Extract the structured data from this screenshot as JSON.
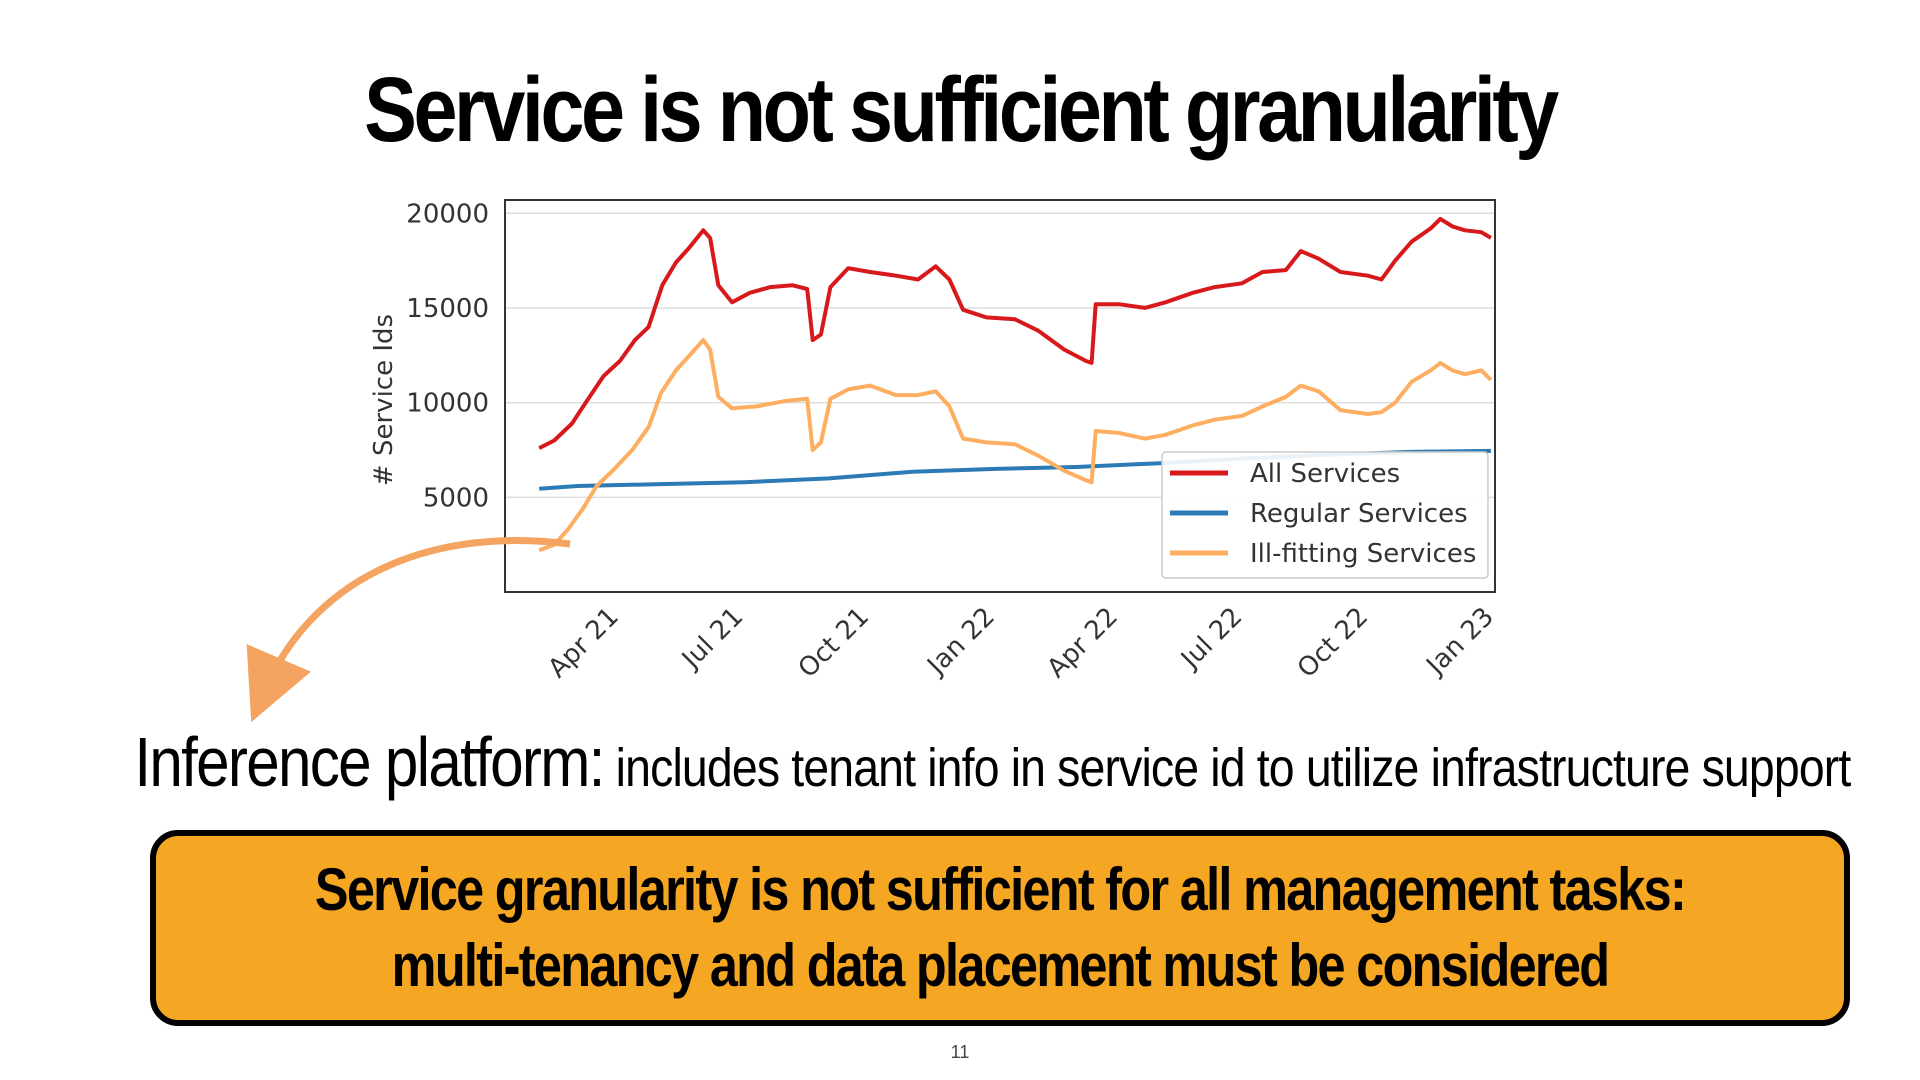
{
  "slide": {
    "title": "Service is not sufficient granularity",
    "subtitle_head": "Inference platform:",
    "subtitle_body": " includes tenant info in service id to utilize infrastructure support",
    "callout": "Service granularity is not sufficient for all management tasks: multi-tenancy and data placement must be considered",
    "page_number": "11"
  },
  "colors": {
    "all_services": "#d7191c",
    "regular_services": "#2c7bb6",
    "ill_fitting_services": "#fdae61",
    "arrow": "#f4a460",
    "callout_fill": "#f5a623"
  },
  "chart_data": {
    "type": "line",
    "title": "",
    "xlabel": "",
    "ylabel": "# Service Ids",
    "x_ticks": [
      "Apr 21",
      "Jul 21",
      "Oct 21",
      "Jan 22",
      "Apr 22",
      "Jul 22",
      "Oct 22",
      "Jan 23"
    ],
    "y_ticks": [
      "5000",
      "10000",
      "15000",
      "20000"
    ],
    "ylim": [
      0,
      20700
    ],
    "xlim": [
      "2021-01-07",
      "2023-01-01"
    ],
    "grid": true,
    "legend_position": "lower-right",
    "series": [
      {
        "name": "All Services",
        "color": "#d7191c",
        "points": [
          [
            "2021-02-01",
            7600
          ],
          [
            "2021-02-12",
            8000
          ],
          [
            "2021-02-25",
            8900
          ],
          [
            "2021-03-08",
            10100
          ],
          [
            "2021-03-20",
            11400
          ],
          [
            "2021-04-01",
            12200
          ],
          [
            "2021-04-12",
            13300
          ],
          [
            "2021-04-22",
            14000
          ],
          [
            "2021-05-02",
            16200
          ],
          [
            "2021-05-12",
            17400
          ],
          [
            "2021-05-22",
            18200
          ],
          [
            "2021-06-01",
            19100
          ],
          [
            "2021-06-06",
            18700
          ],
          [
            "2021-06-12",
            16200
          ],
          [
            "2021-06-22",
            15300
          ],
          [
            "2021-07-05",
            15800
          ],
          [
            "2021-07-20",
            16100
          ],
          [
            "2021-08-05",
            16200
          ],
          [
            "2021-08-16",
            16000
          ],
          [
            "2021-08-20",
            13300
          ],
          [
            "2021-08-26",
            13600
          ],
          [
            "2021-09-02",
            16100
          ],
          [
            "2021-09-15",
            17100
          ],
          [
            "2021-10-01",
            16900
          ],
          [
            "2021-10-20",
            16700
          ],
          [
            "2021-11-05",
            16500
          ],
          [
            "2021-11-18",
            17200
          ],
          [
            "2021-11-28",
            16500
          ],
          [
            "2021-12-08",
            14900
          ],
          [
            "2021-12-25",
            14500
          ],
          [
            "2022-01-15",
            14400
          ],
          [
            "2022-02-01",
            13800
          ],
          [
            "2022-02-20",
            12800
          ],
          [
            "2022-03-08",
            12200
          ],
          [
            "2022-03-12",
            12100
          ],
          [
            "2022-03-15",
            15200
          ],
          [
            "2022-04-01",
            15200
          ],
          [
            "2022-04-20",
            15000
          ],
          [
            "2022-05-05",
            15300
          ],
          [
            "2022-05-25",
            15800
          ],
          [
            "2022-06-10",
            16100
          ],
          [
            "2022-06-30",
            16300
          ],
          [
            "2022-07-15",
            16900
          ],
          [
            "2022-08-01",
            17000
          ],
          [
            "2022-08-12",
            18000
          ],
          [
            "2022-08-25",
            17600
          ],
          [
            "2022-09-10",
            16900
          ],
          [
            "2022-09-30",
            16700
          ],
          [
            "2022-10-10",
            16500
          ],
          [
            "2022-10-20",
            17500
          ],
          [
            "2022-11-01",
            18500
          ],
          [
            "2022-11-15",
            19200
          ],
          [
            "2022-11-22",
            19700
          ],
          [
            "2022-12-01",
            19300
          ],
          [
            "2022-12-10",
            19100
          ],
          [
            "2022-12-22",
            19000
          ],
          [
            "2022-12-29",
            18700
          ]
        ]
      },
      {
        "name": "Regular Services",
        "color": "#2c7bb6",
        "points": [
          [
            "2021-02-01",
            5450
          ],
          [
            "2021-03-01",
            5600
          ],
          [
            "2021-05-01",
            5700
          ],
          [
            "2021-07-01",
            5800
          ],
          [
            "2021-09-01",
            6000
          ],
          [
            "2021-11-01",
            6350
          ],
          [
            "2022-01-01",
            6500
          ],
          [
            "2022-03-01",
            6600
          ],
          [
            "2022-05-01",
            6800
          ],
          [
            "2022-07-01",
            7050
          ],
          [
            "2022-09-01",
            7250
          ],
          [
            "2022-11-01",
            7400
          ],
          [
            "2022-12-29",
            7450
          ]
        ]
      },
      {
        "name": "Ill-fitting Services",
        "color": "#fdae61",
        "points": [
          [
            "2021-02-01",
            2200
          ],
          [
            "2021-02-12",
            2500
          ],
          [
            "2021-02-22",
            3300
          ],
          [
            "2021-03-05",
            4400
          ],
          [
            "2021-03-15",
            5600
          ],
          [
            "2021-03-28",
            6500
          ],
          [
            "2021-04-10",
            7500
          ],
          [
            "2021-04-22",
            8700
          ],
          [
            "2021-05-01",
            10500
          ],
          [
            "2021-05-12",
            11700
          ],
          [
            "2021-05-22",
            12500
          ],
          [
            "2021-06-01",
            13300
          ],
          [
            "2021-06-06",
            12800
          ],
          [
            "2021-06-12",
            10300
          ],
          [
            "2021-06-22",
            9700
          ],
          [
            "2021-07-10",
            9800
          ],
          [
            "2021-08-01",
            10100
          ],
          [
            "2021-08-16",
            10200
          ],
          [
            "2021-08-20",
            7500
          ],
          [
            "2021-08-26",
            7900
          ],
          [
            "2021-09-02",
            10200
          ],
          [
            "2021-09-15",
            10700
          ],
          [
            "2021-10-01",
            10900
          ],
          [
            "2021-10-20",
            10400
          ],
          [
            "2021-11-05",
            10400
          ],
          [
            "2021-11-18",
            10600
          ],
          [
            "2021-11-28",
            9800
          ],
          [
            "2021-12-08",
            8100
          ],
          [
            "2021-12-25",
            7900
          ],
          [
            "2022-01-15",
            7800
          ],
          [
            "2022-02-01",
            7200
          ],
          [
            "2022-02-20",
            6400
          ],
          [
            "2022-03-08",
            5900
          ],
          [
            "2022-03-12",
            5800
          ],
          [
            "2022-03-15",
            8500
          ],
          [
            "2022-04-01",
            8400
          ],
          [
            "2022-04-20",
            8100
          ],
          [
            "2022-05-05",
            8300
          ],
          [
            "2022-05-25",
            8800
          ],
          [
            "2022-06-10",
            9100
          ],
          [
            "2022-06-30",
            9300
          ],
          [
            "2022-07-15",
            9800
          ],
          [
            "2022-08-01",
            10300
          ],
          [
            "2022-08-12",
            10900
          ],
          [
            "2022-08-25",
            10600
          ],
          [
            "2022-09-10",
            9600
          ],
          [
            "2022-09-30",
            9400
          ],
          [
            "2022-10-10",
            9500
          ],
          [
            "2022-10-20",
            10000
          ],
          [
            "2022-11-01",
            11100
          ],
          [
            "2022-11-15",
            11700
          ],
          [
            "2022-11-22",
            12100
          ],
          [
            "2022-12-01",
            11700
          ],
          [
            "2022-12-10",
            11500
          ],
          [
            "2022-12-22",
            11700
          ],
          [
            "2022-12-29",
            11200
          ]
        ]
      }
    ]
  }
}
